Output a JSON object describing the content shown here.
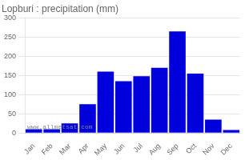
{
  "chart_data": {
    "type": "bar",
    "title": "Lopburi : precipitation (mm)",
    "categories": [
      "Jan",
      "Feb",
      "Mar",
      "Apr",
      "May",
      "Jun",
      "Jul",
      "Aug",
      "Sep",
      "Oct",
      "Nov",
      "Dec"
    ],
    "values": [
      10,
      10,
      25,
      75,
      160,
      135,
      148,
      170,
      265,
      155,
      35,
      8
    ],
    "color": "#0000DD",
    "ylim": [
      0,
      300
    ],
    "yticks": [
      0,
      50,
      100,
      150,
      200,
      250,
      300
    ],
    "grid": true,
    "annotations": [
      "www.allmetsat.com"
    ]
  }
}
